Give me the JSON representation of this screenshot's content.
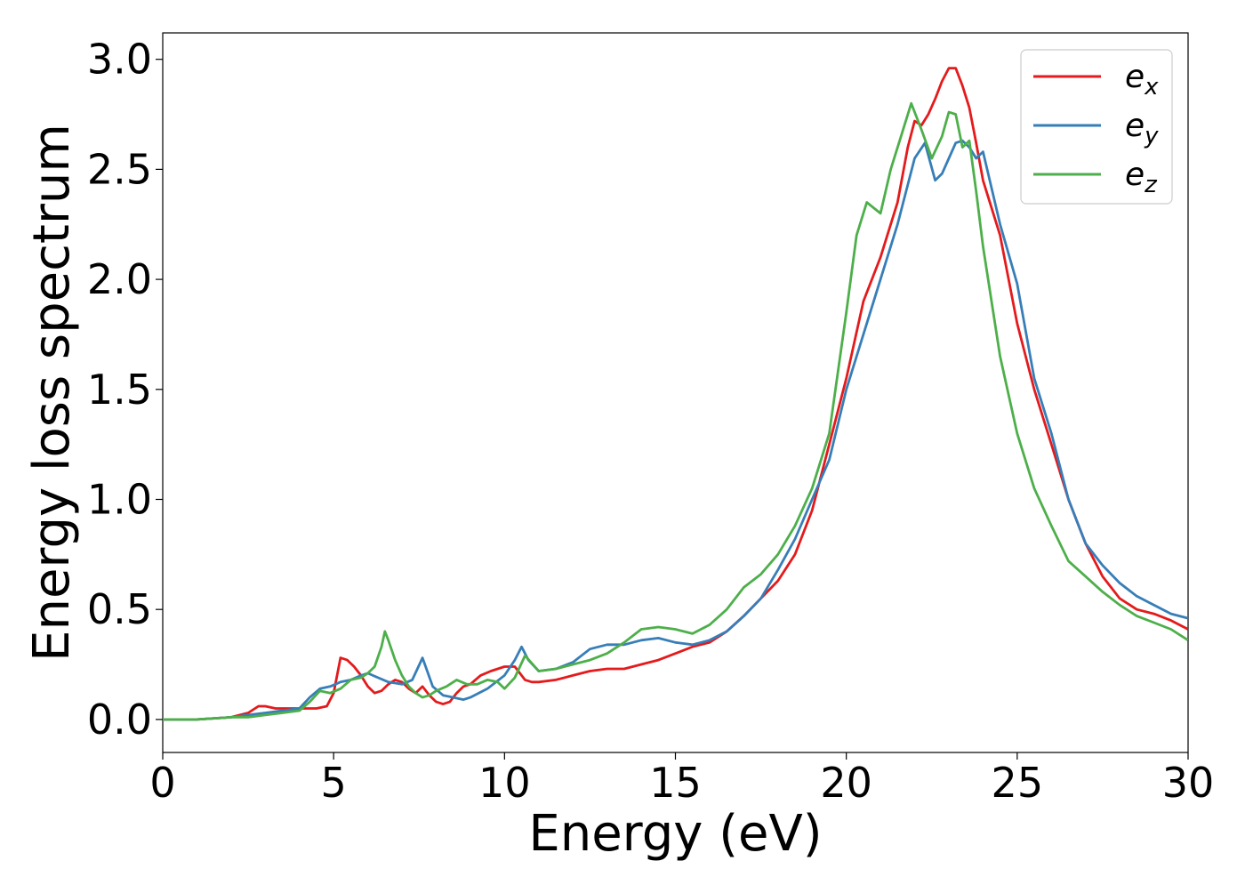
{
  "chart_data": {
    "type": "line",
    "title": "",
    "xlabel": "Energy (eV)",
    "ylabel": "Energy loss spectrum",
    "xlim": [
      0,
      30
    ],
    "ylim": [
      -0.15,
      3.12
    ],
    "xticks": [
      0,
      5,
      10,
      15,
      20,
      25,
      30
    ],
    "xtick_labels": [
      "0",
      "5",
      "10",
      "15",
      "20",
      "25",
      "30"
    ],
    "yticks": [
      0.0,
      0.5,
      1.0,
      1.5,
      2.0,
      2.5,
      3.0
    ],
    "ytick_labels": [
      "0.0",
      "0.5",
      "1.0",
      "1.5",
      "2.0",
      "2.5",
      "3.0"
    ],
    "grid": false,
    "legend_position": "top-right",
    "series": [
      {
        "name": "e_x",
        "legend_base": "e",
        "legend_sub": "x",
        "color": "#e41a1c",
        "x": [
          0,
          1,
          2,
          2.5,
          2.8,
          3.0,
          3.3,
          3.7,
          4.0,
          4.5,
          4.8,
          5.0,
          5.2,
          5.4,
          5.6,
          5.8,
          6.0,
          6.2,
          6.4,
          6.6,
          6.8,
          7.0,
          7.2,
          7.4,
          7.6,
          7.8,
          8.0,
          8.2,
          8.4,
          8.6,
          8.8,
          9.0,
          9.3,
          9.6,
          10.0,
          10.3,
          10.6,
          10.8,
          11.0,
          11.5,
          12.0,
          12.5,
          13.0,
          13.5,
          14.0,
          14.5,
          15.0,
          15.5,
          16.0,
          16.5,
          17.0,
          17.5,
          18.0,
          18.5,
          19.0,
          19.5,
          20.0,
          20.5,
          21.0,
          21.5,
          21.8,
          22.0,
          22.2,
          22.4,
          22.6,
          22.8,
          23.0,
          23.2,
          23.4,
          23.6,
          23.8,
          24.0,
          24.5,
          25.0,
          25.5,
          26.0,
          26.5,
          27.0,
          27.5,
          28.0,
          28.5,
          29.0,
          29.5,
          30.0
        ],
        "y": [
          0.0,
          0.0,
          0.01,
          0.03,
          0.06,
          0.06,
          0.05,
          0.05,
          0.05,
          0.05,
          0.06,
          0.12,
          0.28,
          0.27,
          0.24,
          0.2,
          0.15,
          0.12,
          0.13,
          0.16,
          0.18,
          0.17,
          0.14,
          0.12,
          0.15,
          0.11,
          0.08,
          0.07,
          0.08,
          0.12,
          0.15,
          0.16,
          0.2,
          0.22,
          0.24,
          0.24,
          0.18,
          0.17,
          0.17,
          0.18,
          0.2,
          0.22,
          0.23,
          0.23,
          0.25,
          0.27,
          0.3,
          0.33,
          0.35,
          0.4,
          0.47,
          0.55,
          0.63,
          0.75,
          0.95,
          1.25,
          1.55,
          1.9,
          2.1,
          2.35,
          2.6,
          2.72,
          2.7,
          2.75,
          2.82,
          2.9,
          2.96,
          2.96,
          2.88,
          2.78,
          2.62,
          2.45,
          2.2,
          1.8,
          1.5,
          1.25,
          1.0,
          0.8,
          0.65,
          0.55,
          0.5,
          0.48,
          0.45,
          0.41
        ]
      },
      {
        "name": "e_y",
        "legend_base": "e",
        "legend_sub": "y",
        "color": "#377eb8",
        "x": [
          0,
          1,
          2,
          2.5,
          3.0,
          3.5,
          4.0,
          4.3,
          4.6,
          4.9,
          5.2,
          5.5,
          5.8,
          6.0,
          6.3,
          6.6,
          7.0,
          7.3,
          7.6,
          7.9,
          8.2,
          8.5,
          8.8,
          9.0,
          9.5,
          10.0,
          10.3,
          10.5,
          10.7,
          11.0,
          11.5,
          12.0,
          12.5,
          13.0,
          13.5,
          14.0,
          14.5,
          15.0,
          15.5,
          16.0,
          16.5,
          17.0,
          17.5,
          18.0,
          18.5,
          19.0,
          19.5,
          20.0,
          20.5,
          21.0,
          21.5,
          22.0,
          22.3,
          22.6,
          22.8,
          23.0,
          23.2,
          23.4,
          23.6,
          23.8,
          24.0,
          24.5,
          25.0,
          25.5,
          26.0,
          26.5,
          27.0,
          27.5,
          28.0,
          28.5,
          29.0,
          29.5,
          30.0
        ],
        "y": [
          0.0,
          0.0,
          0.01,
          0.02,
          0.03,
          0.04,
          0.05,
          0.1,
          0.14,
          0.15,
          0.17,
          0.18,
          0.2,
          0.21,
          0.19,
          0.17,
          0.16,
          0.18,
          0.28,
          0.15,
          0.11,
          0.1,
          0.09,
          0.1,
          0.14,
          0.2,
          0.27,
          0.33,
          0.27,
          0.22,
          0.23,
          0.26,
          0.32,
          0.34,
          0.34,
          0.36,
          0.37,
          0.35,
          0.34,
          0.36,
          0.4,
          0.47,
          0.55,
          0.68,
          0.82,
          1.0,
          1.18,
          1.5,
          1.75,
          2.0,
          2.25,
          2.55,
          2.62,
          2.45,
          2.48,
          2.55,
          2.62,
          2.63,
          2.6,
          2.55,
          2.58,
          2.25,
          1.98,
          1.55,
          1.3,
          1.0,
          0.8,
          0.7,
          0.62,
          0.56,
          0.52,
          0.48,
          0.46
        ]
      },
      {
        "name": "e_z",
        "legend_base": "e",
        "legend_sub": "z",
        "color": "#4daf4a",
        "x": [
          0,
          1,
          2,
          2.5,
          3.0,
          3.5,
          4.0,
          4.3,
          4.6,
          4.9,
          5.2,
          5.5,
          5.8,
          6.0,
          6.2,
          6.4,
          6.5,
          6.6,
          6.8,
          7.0,
          7.2,
          7.4,
          7.6,
          7.8,
          8.0,
          8.3,
          8.6,
          8.9,
          9.2,
          9.5,
          9.8,
          10.0,
          10.3,
          10.6,
          11.0,
          11.5,
          12.0,
          12.5,
          13.0,
          13.5,
          14.0,
          14.5,
          15.0,
          15.5,
          16.0,
          16.5,
          17.0,
          17.5,
          18.0,
          18.5,
          19.0,
          19.5,
          20.0,
          20.3,
          20.6,
          21.0,
          21.3,
          21.6,
          21.9,
          22.2,
          22.5,
          22.8,
          23.0,
          23.2,
          23.4,
          23.6,
          23.8,
          24.0,
          24.5,
          25.0,
          25.5,
          26.0,
          26.5,
          27.0,
          27.5,
          28.0,
          28.5,
          29.0,
          29.5,
          30.0
        ],
        "y": [
          0.0,
          0.0,
          0.01,
          0.01,
          0.02,
          0.03,
          0.04,
          0.08,
          0.13,
          0.12,
          0.14,
          0.18,
          0.19,
          0.21,
          0.24,
          0.33,
          0.4,
          0.36,
          0.27,
          0.2,
          0.15,
          0.12,
          0.1,
          0.11,
          0.13,
          0.15,
          0.18,
          0.16,
          0.16,
          0.18,
          0.17,
          0.14,
          0.19,
          0.29,
          0.22,
          0.23,
          0.25,
          0.27,
          0.3,
          0.35,
          0.41,
          0.42,
          0.41,
          0.39,
          0.43,
          0.5,
          0.6,
          0.66,
          0.75,
          0.88,
          1.05,
          1.3,
          1.85,
          2.2,
          2.35,
          2.3,
          2.5,
          2.65,
          2.8,
          2.68,
          2.55,
          2.65,
          2.76,
          2.75,
          2.6,
          2.63,
          2.4,
          2.15,
          1.65,
          1.3,
          1.05,
          0.88,
          0.72,
          0.65,
          0.58,
          0.52,
          0.47,
          0.44,
          0.41,
          0.36
        ]
      }
    ]
  }
}
